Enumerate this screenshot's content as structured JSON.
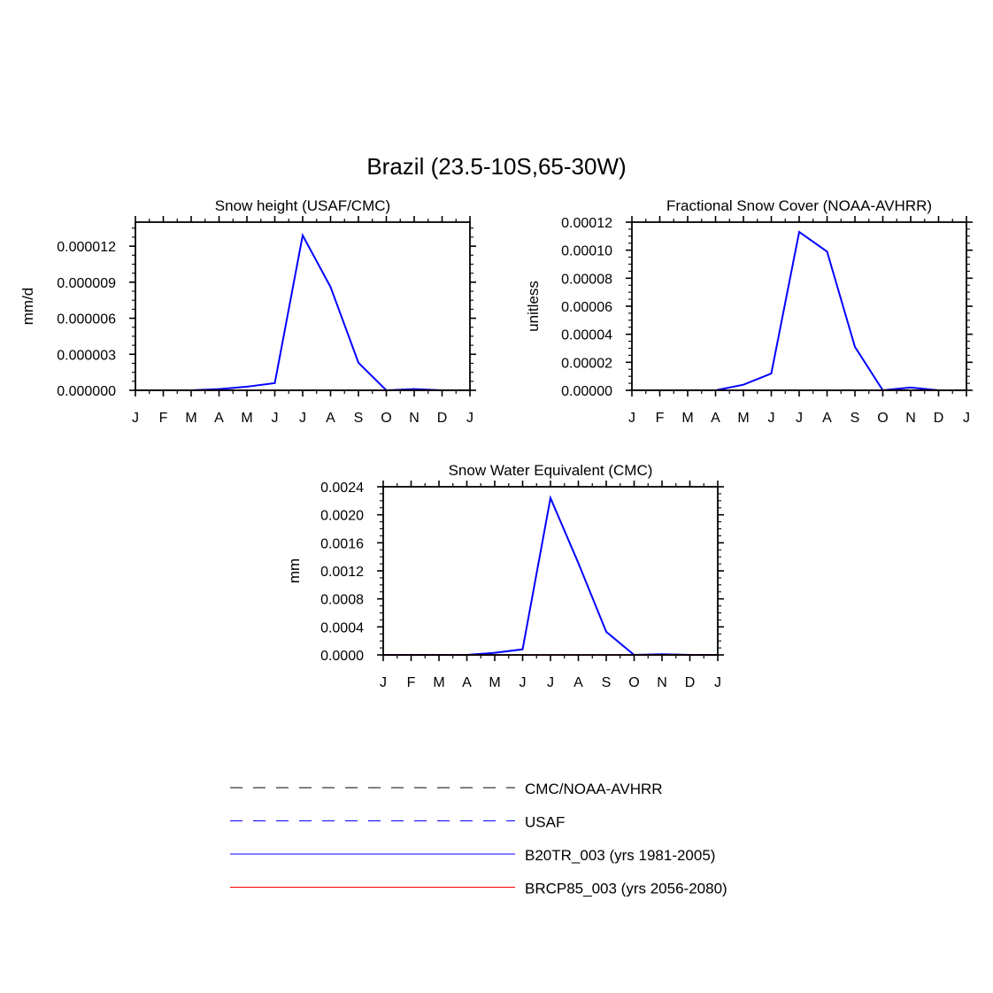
{
  "figure": {
    "title": "Brazil (23.5-10S,65-30W)"
  },
  "months": [
    "J",
    "F",
    "M",
    "A",
    "M",
    "J",
    "J",
    "A",
    "S",
    "O",
    "N",
    "D",
    "J"
  ],
  "legend": [
    {
      "label": "CMC/NOAA-AVHRR",
      "color": "#000000",
      "style": "dashed"
    },
    {
      "label": "USAF",
      "color": "#0000ff",
      "style": "dashed"
    },
    {
      "label": "B20TR_003 (yrs 1981-2005)",
      "color": "#0000ff",
      "style": "solid"
    },
    {
      "label": "BRCP85_003 (yrs 2056-2080)",
      "color": "#ff0000",
      "style": "solid"
    }
  ],
  "chart_data": [
    {
      "type": "line",
      "title": "Snow height (USAF/CMC)",
      "ylabel": "mm/d",
      "xlabel": "",
      "x": [
        "J",
        "F",
        "M",
        "A",
        "M",
        "J",
        "J",
        "A",
        "S",
        "O",
        "N",
        "D",
        "J"
      ],
      "ylim": [
        0,
        1.4e-05
      ],
      "yticks": [
        0,
        3e-06,
        6e-06,
        9e-06,
        1.2e-05
      ],
      "ytick_labels": [
        "0.000000",
        "0.000003",
        "0.000006",
        "0.000009",
        "0.000012"
      ],
      "grid": false,
      "series": [
        {
          "name": "B20TR_003 (yrs 1981-2005)",
          "color": "#0000ff",
          "values": [
            0,
            0,
            0,
            1e-07,
            3e-07,
            6e-07,
            1.29e-05,
            8.6e-06,
            2.3e-06,
            0,
            1e-07,
            0,
            0
          ]
        },
        {
          "name": "BRCP85_003 (yrs 2056-2080)",
          "color": "#ff0000",
          "values": [
            0,
            0,
            0,
            0,
            0,
            0,
            0,
            0,
            0,
            0,
            0,
            0,
            0
          ]
        }
      ]
    },
    {
      "type": "line",
      "title": "Fractional Snow Cover (NOAA-AVHRR)",
      "ylabel": "unitless",
      "xlabel": "",
      "x": [
        "J",
        "F",
        "M",
        "A",
        "M",
        "J",
        "J",
        "A",
        "S",
        "O",
        "N",
        "D",
        "J"
      ],
      "ylim": [
        0,
        0.00012
      ],
      "yticks": [
        0,
        2e-05,
        4e-05,
        6e-05,
        8e-05,
        0.0001,
        0.00012
      ],
      "ytick_labels": [
        "0.00000",
        "0.00002",
        "0.00004",
        "0.00006",
        "0.00008",
        "0.00010",
        "0.00012"
      ],
      "grid": false,
      "series": [
        {
          "name": "B20TR_003 (yrs 1981-2005)",
          "color": "#0000ff",
          "values": [
            0,
            0,
            0,
            0,
            4e-06,
            1.2e-05,
            0.000113,
            9.9e-05,
            3.1e-05,
            0,
            2e-06,
            0,
            0
          ]
        },
        {
          "name": "BRCP85_003 (yrs 2056-2080)",
          "color": "#ff0000",
          "values": [
            0,
            0,
            0,
            0,
            0,
            0,
            0,
            0,
            0,
            0,
            0,
            0,
            0
          ]
        }
      ]
    },
    {
      "type": "line",
      "title": "Snow Water Equivalent (CMC)",
      "ylabel": "mm",
      "xlabel": "",
      "x": [
        "J",
        "F",
        "M",
        "A",
        "M",
        "J",
        "J",
        "A",
        "S",
        "O",
        "N",
        "D",
        "J"
      ],
      "ylim": [
        0,
        0.0024
      ],
      "yticks": [
        0,
        0.0004,
        0.0008,
        0.0012,
        0.0016,
        0.002,
        0.0024
      ],
      "ytick_labels": [
        "0.0000",
        "0.0004",
        "0.0008",
        "0.0012",
        "0.0016",
        "0.0020",
        "0.0024"
      ],
      "grid": false,
      "series": [
        {
          "name": "B20TR_003 (yrs 1981-2005)",
          "color": "#0000ff",
          "values": [
            0,
            0,
            0,
            0,
            3e-05,
            8e-05,
            0.00224,
            0.00131,
            0.00033,
            0,
            1e-05,
            0,
            0
          ]
        },
        {
          "name": "BRCP85_003 (yrs 2056-2080)",
          "color": "#ff0000",
          "values": [
            0,
            0,
            0,
            0,
            0,
            0,
            0,
            0,
            0,
            0,
            0,
            0,
            0
          ]
        }
      ]
    }
  ]
}
